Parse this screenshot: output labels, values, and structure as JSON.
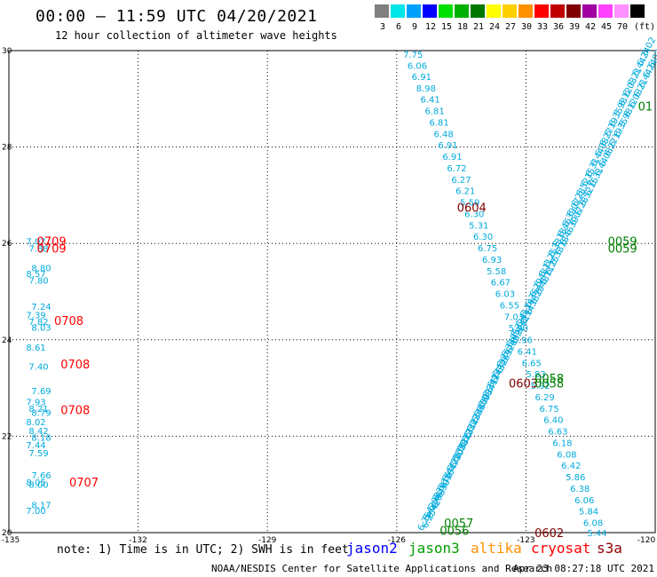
{
  "title": "00:00 – 11:59 UTC 04/20/2021",
  "subtitle": "12 hour collection of altimeter wave heights",
  "legend": {
    "unit": "(ft)",
    "bins": [
      {
        "label": "3",
        "color": "#808080"
      },
      {
        "label": "6",
        "color": "#00e5e5"
      },
      {
        "label": "9",
        "color": "#00a0ff"
      },
      {
        "label": "12",
        "color": "#0000ff"
      },
      {
        "label": "15",
        "color": "#00e000"
      },
      {
        "label": "18",
        "color": "#00b000"
      },
      {
        "label": "21",
        "color": "#007800"
      },
      {
        "label": "24",
        "color": "#ffff00"
      },
      {
        "label": "27",
        "color": "#ffd000"
      },
      {
        "label": "30",
        "color": "#ff9000"
      },
      {
        "label": "33",
        "color": "#ff0000"
      },
      {
        "label": "36",
        "color": "#c00000"
      },
      {
        "label": "39",
        "color": "#800000"
      },
      {
        "label": "42",
        "color": "#a000a0"
      },
      {
        "label": "45",
        "color": "#ff40ff"
      },
      {
        "label": "70",
        "color": "#ff90ff"
      },
      {
        "label": "",
        "color": "#000000"
      }
    ]
  },
  "map": {
    "lon_range": [
      -135,
      -120
    ],
    "lat_range": [
      20,
      30
    ],
    "x_ticks": [
      "-135",
      "-132",
      "-129",
      "-126",
      "-123",
      "-120"
    ],
    "y_ticks": [
      "30",
      "28",
      "26",
      "24",
      "22",
      "20"
    ]
  },
  "colors": {
    "swh": "#00aadd",
    "jason2": "#0000ff",
    "jason3": "#00a000",
    "altika": "#ff9000",
    "cryosat": "#ff0000",
    "s3a": "#900000",
    "time_red": "#ff0000",
    "time_green": "#008000",
    "time_dark": "#800000"
  },
  "tracks": {
    "west": {
      "values": [
        "7.07",
        "7.88",
        "8.80",
        "8.57",
        "7.80",
        "7.24",
        "7.39",
        "7.82",
        "8.03",
        "8.61",
        "7.40",
        "7.69",
        "7.93",
        "8.21",
        "8.79",
        "8.02",
        "8.42",
        "8.18",
        "7.44",
        "7.59",
        "7.66",
        "8.05",
        "8.00",
        "8.17",
        "7.00"
      ],
      "lats": [
        26.05,
        25.9,
        25.5,
        25.38,
        25.24,
        24.7,
        24.52,
        24.38,
        24.26,
        23.85,
        23.45,
        22.95,
        22.72,
        22.58,
        22.5,
        22.3,
        22.12,
        21.98,
        21.82,
        21.66,
        21.2,
        21.05,
        21.0,
        20.58,
        20.46
      ]
    },
    "middle": {
      "values": [
        "7.75",
        "6.06",
        "6.91",
        "8.98",
        "6.41",
        "6.81",
        "6.81",
        "6.48",
        "6.91",
        "6.91",
        "6.72",
        "6.27",
        "6.21",
        "5.59",
        "6.30",
        "5.31",
        "6.30",
        "6.75",
        "6.93",
        "5.58",
        "6.67",
        "6.03",
        "6.55",
        "7.03",
        "5.90",
        "5.96",
        "6.41",
        "6.65",
        "5.83",
        "5.92",
        "6.29",
        "6.75",
        "6.40",
        "6.63",
        "6.18",
        "6.08",
        "6.42",
        "5.86",
        "6.38",
        "6.06",
        "5.84",
        "6.08",
        "5.44"
      ],
      "lats": [
        29.93,
        29.7,
        29.47,
        29.23,
        29.0,
        28.76,
        28.52,
        28.28,
        28.05,
        27.81,
        27.57,
        27.33,
        27.1,
        26.86,
        26.62,
        26.38,
        26.15,
        25.91,
        25.67,
        25.43,
        25.2,
        24.96,
        24.72,
        24.48,
        24.25,
        24.01,
        23.77,
        23.53,
        23.3,
        23.06,
        22.82,
        22.58,
        22.35,
        22.11,
        21.87,
        21.63,
        21.4,
        21.16,
        20.92,
        20.68,
        20.45,
        20.21,
        20.0
      ]
    },
    "east": {
      "values": [
        "6.02",
        "6.24",
        "6.44",
        "6.21",
        "6.03",
        "6.12",
        "5.98",
        "6.35",
        "6.19",
        "6.27",
        "6.08",
        "6.44",
        "6.31",
        "6.15",
        "6.52",
        "6.28",
        "6.07",
        "6.39",
        "6.46",
        "6.18",
        "6.33",
        "6.25",
        "6.11",
        "6.48",
        "6.29",
        "6.36",
        "6.14",
        "6.41",
        "6.22",
        "6.05",
        "6.37",
        "6.26",
        "6.43",
        "6.17",
        "6.34",
        "6.09",
        "6.45",
        "6.23",
        "6.31",
        "6.12",
        "6.38",
        "6.20",
        "6.47",
        "6.16",
        "6.30",
        "6.08",
        "6.42",
        "6.25"
      ]
    }
  },
  "time_labels": [
    {
      "text": "0709",
      "lon": -134.35,
      "lat": 26.05,
      "color": "#ff0000"
    },
    {
      "text": "0709",
      "lon": -134.35,
      "lat": 25.9,
      "color": "#ff0000"
    },
    {
      "text": "0708",
      "lon": -133.95,
      "lat": 24.4,
      "color": "#ff0000"
    },
    {
      "text": "0708",
      "lon": -133.8,
      "lat": 23.5,
      "color": "#ff0000"
    },
    {
      "text": "0708",
      "lon": -133.8,
      "lat": 22.55,
      "color": "#ff0000"
    },
    {
      "text": "0707",
      "lon": -133.6,
      "lat": 21.05,
      "color": "#ff0000"
    },
    {
      "text": "0604",
      "lon": -124.6,
      "lat": 26.75,
      "color": "#800000"
    },
    {
      "text": "0603",
      "lon": -123.4,
      "lat": 23.1,
      "color": "#800000"
    },
    {
      "text": "0602",
      "lon": -122.8,
      "lat": 20.0,
      "color": "#800000"
    },
    {
      "text": "0059",
      "lon": -121.1,
      "lat": 26.05,
      "color": "#008000"
    },
    {
      "text": "0059",
      "lon": -121.1,
      "lat": 25.9,
      "color": "#008000"
    },
    {
      "text": "0058",
      "lon": -122.8,
      "lat": 23.2,
      "color": "#008000"
    },
    {
      "text": "0058",
      "lon": -122.8,
      "lat": 23.1,
      "color": "#008000"
    },
    {
      "text": "0057",
      "lon": -124.9,
      "lat": 20.2,
      "color": "#008000"
    },
    {
      "text": "0056",
      "lon": -125.0,
      "lat": 20.05,
      "color": "#008000"
    },
    {
      "text": "01",
      "lon": -120.4,
      "lat": 28.85,
      "color": "#008000"
    }
  ],
  "footer": {
    "note": "note: 1) Time is in UTC; 2) SWH is in feet",
    "satellites": [
      {
        "name": "jason2",
        "color": "#0000ff"
      },
      {
        "name": "jason3",
        "color": "#00a000"
      },
      {
        "name": "altika",
        "color": "#ff9000"
      },
      {
        "name": "cryosat",
        "color": "#ff0000"
      },
      {
        "name": "s3a",
        "color": "#900000"
      }
    ],
    "credit": "NOAA/NESDIS Center for Satellite Applications and Research",
    "timestamp": "Apr 23 08:27:18 UTC 2021"
  }
}
